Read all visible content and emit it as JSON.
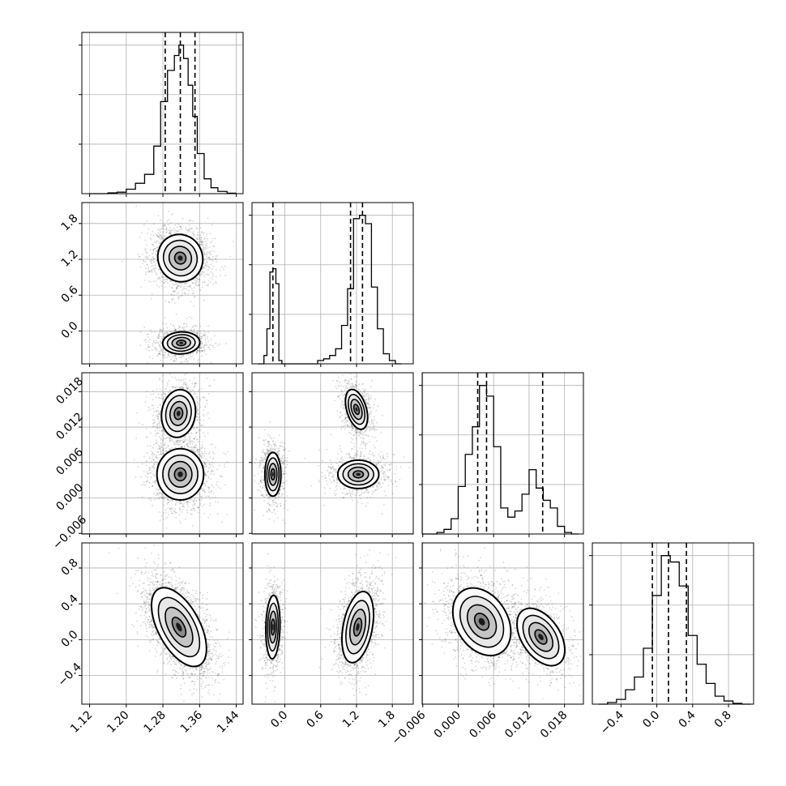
{
  "chart_data": {
    "type": "corner",
    "grid": true,
    "colors": {
      "line": "#000000",
      "grid": "#b0b0b0",
      "points": "#000000"
    },
    "parameters": [
      {
        "ticks": [
          "1.12",
          "1.20",
          "1.28",
          "1.36",
          "1.44"
        ],
        "range": [
          1.103,
          1.455
        ]
      },
      {
        "ticks": [
          "0.0",
          "0.6",
          "1.2",
          "1.8"
        ],
        "range": [
          -0.55,
          2.15
        ]
      },
      {
        "ticks": [
          "−0.006",
          "0.000",
          "0.006",
          "0.012",
          "0.018"
        ],
        "range": [
          -0.0061,
          0.0212
        ]
      },
      {
        "ticks": [
          "−0.4",
          "0.0",
          "0.4",
          "0.8"
        ],
        "range": [
          -0.72,
          1.08
        ]
      }
    ],
    "histograms": [
      {
        "param": 0,
        "quantiles": [
          1.285,
          1.318,
          1.35
        ],
        "edges": [
          1.12,
          1.14,
          1.16,
          1.18,
          1.2,
          1.22,
          1.24,
          1.26,
          1.275,
          1.29,
          1.305,
          1.315,
          1.325,
          1.335,
          1.345,
          1.355,
          1.37,
          1.385,
          1.4,
          1.42,
          1.44
        ],
        "values": [
          0,
          0,
          0.005,
          0.01,
          0.03,
          0.07,
          0.13,
          0.32,
          0.62,
          0.83,
          0.93,
          1.0,
          0.91,
          0.73,
          0.52,
          0.27,
          0.1,
          0.04,
          0.015,
          0.003
        ]
      },
      {
        "param": 1,
        "quantiles": [
          -0.2,
          1.1,
          1.3
        ],
        "edges": [
          -0.45,
          -0.35,
          -0.3,
          -0.25,
          -0.2,
          -0.15,
          -0.1,
          -0.05,
          0.05,
          0.15,
          0.25,
          0.35,
          0.45,
          0.55,
          0.65,
          0.75,
          0.85,
          0.95,
          1.05,
          1.15,
          1.25,
          1.35,
          1.45,
          1.55,
          1.65,
          1.75,
          1.85,
          1.95
        ],
        "values": [
          0,
          0.05,
          0.21,
          0.55,
          0.57,
          0.48,
          0.02,
          0,
          0,
          0,
          0,
          0,
          0,
          0.02,
          0.03,
          0.05,
          0.09,
          0.23,
          0.45,
          0.87,
          0.89,
          0.84,
          0.46,
          0.21,
          0.06,
          0.02,
          0
        ]
      },
      {
        "param": 2,
        "quantiles": [
          0.0033,
          0.0048,
          0.0143
        ],
        "edges": [
          -0.006,
          -0.0048,
          -0.0036,
          -0.0024,
          -0.0012,
          0.0,
          0.0012,
          0.0024,
          0.0036,
          0.0048,
          0.006,
          0.0072,
          0.0084,
          0.0096,
          0.0108,
          0.012,
          0.0132,
          0.0144,
          0.0156,
          0.0168,
          0.018,
          0.0192,
          0.0204
        ],
        "values": [
          0,
          0,
          0.01,
          0.03,
          0.1,
          0.31,
          0.52,
          0.7,
          0.97,
          0.9,
          0.57,
          0.17,
          0.11,
          0.15,
          0.26,
          0.42,
          0.3,
          0.22,
          0.17,
          0.05,
          0.01,
          0
        ]
      },
      {
        "param": 3,
        "quantiles": [
          -0.05,
          0.13,
          0.33
        ],
        "edges": [
          -0.65,
          -0.55,
          -0.45,
          -0.35,
          -0.25,
          -0.15,
          -0.05,
          0.05,
          0.15,
          0.25,
          0.35,
          0.45,
          0.55,
          0.65,
          0.75,
          0.85,
          0.95,
          1.05
        ],
        "values": [
          0,
          0.01,
          0.03,
          0.09,
          0.17,
          0.35,
          0.68,
          0.93,
          0.89,
          0.74,
          0.43,
          0.25,
          0.13,
          0.05,
          0.02,
          0.005,
          0
        ]
      }
    ],
    "scatter_panels": [
      {
        "x_param": 0,
        "y_param": 1,
        "modes": [
          {
            "cx": 1.318,
            "cy": 1.22,
            "sx": 0.026,
            "sy": 0.21,
            "rho": -0.05,
            "w": 0.68
          },
          {
            "cx": 1.32,
            "cy": -0.2,
            "sx": 0.024,
            "sy": 0.11,
            "rho": 0.05,
            "w": 0.32
          }
        ]
      },
      {
        "x_param": 0,
        "y_param": 2,
        "modes": [
          {
            "cx": 1.318,
            "cy": 0.004,
            "sx": 0.027,
            "sy": 0.0023,
            "rho": 0.0,
            "w": 0.68
          },
          {
            "cx": 1.314,
            "cy": 0.0143,
            "sx": 0.022,
            "sy": 0.0024,
            "rho": 0.1,
            "w": 0.32
          }
        ]
      },
      {
        "x_param": 1,
        "y_param": 2,
        "modes": [
          {
            "cx": -0.2,
            "cy": 0.004,
            "sx": 0.08,
            "sy": 0.0022,
            "rho": 0.0,
            "w": 0.32
          },
          {
            "cx": 1.2,
            "cy": 0.015,
            "sx": 0.11,
            "sy": 0.002,
            "rho": -0.4,
            "w": 0.32
          },
          {
            "cx": 1.23,
            "cy": 0.004,
            "sx": 0.2,
            "sy": 0.0014,
            "rho": 0.0,
            "w": 0.36
          }
        ]
      },
      {
        "x_param": 0,
        "y_param": 3,
        "modes": [
          {
            "cx": 1.315,
            "cy": 0.14,
            "sx": 0.03,
            "sy": 0.22,
            "rho": -0.55,
            "w": 1.0
          }
        ]
      },
      {
        "x_param": 1,
        "y_param": 3,
        "modes": [
          {
            "cx": -0.2,
            "cy": 0.14,
            "sx": 0.07,
            "sy": 0.21,
            "rho": 0.1,
            "w": 0.32
          },
          {
            "cx": 1.22,
            "cy": 0.14,
            "sx": 0.14,
            "sy": 0.21,
            "rho": 0.35,
            "w": 0.68
          }
        ]
      },
      {
        "x_param": 2,
        "y_param": 3,
        "modes": [
          {
            "cx": 0.004,
            "cy": 0.2,
            "sx": 0.0026,
            "sy": 0.2,
            "rho": -0.3,
            "w": 0.68
          },
          {
            "cx": 0.014,
            "cy": 0.03,
            "sx": 0.0024,
            "sy": 0.19,
            "rho": -0.45,
            "w": 0.32
          }
        ]
      }
    ]
  }
}
